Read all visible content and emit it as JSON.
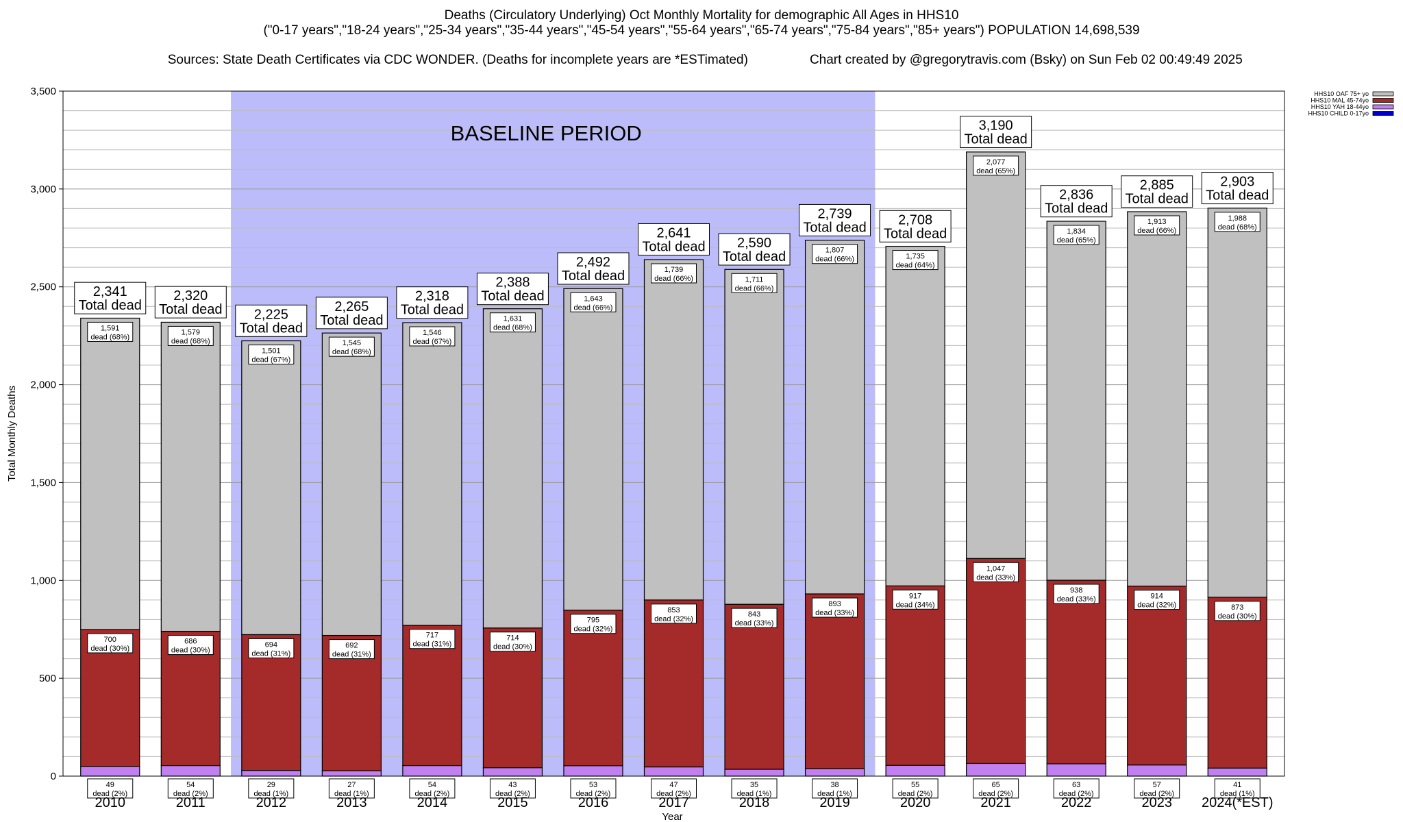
{
  "header": {
    "title": "Deaths (Circulatory Underlying) Oct Monthly Mortality for demographic All Ages in HHS10",
    "subtitle": "(\"0-17 years\",\"18-24 years\",\"25-34 years\",\"35-44 years\",\"45-54 years\",\"55-64 years\",\"65-74 years\",\"75-84 years\",\"85+ years\") POPULATION 14,698,539",
    "sources": "Sources: State Death Certificates via CDC WONDER. (Deaths for incomplete years are *ESTimated)",
    "credit": "Chart created by @gregorytravis.com (Bsky) on Sun Feb 02 00:49:49 2025"
  },
  "chart_data": {
    "type": "bar",
    "stacked": true,
    "xlabel": "Year",
    "ylabel": "Total Monthly Deaths",
    "ylim": [
      0,
      3500
    ],
    "yticks": [
      0,
      500,
      1000,
      1500,
      2000,
      2500,
      3000,
      3500
    ],
    "ytick_labels": [
      "0",
      "500",
      "1,000",
      "1,500",
      "2,000",
      "2,500",
      "3,000",
      "3,500"
    ],
    "grid": true,
    "legend_position": "top-right",
    "annotation": {
      "text": "BASELINE PERIOD",
      "from": "2012",
      "to": "2019",
      "color": "#bcbcfa"
    },
    "categories": [
      "2010",
      "2011",
      "2012",
      "2013",
      "2014",
      "2015",
      "2016",
      "2017",
      "2018",
      "2019",
      "2020",
      "2021",
      "2022",
      "2023",
      "2024(*EST)"
    ],
    "totals": [
      2341,
      2320,
      2225,
      2265,
      2318,
      2388,
      2492,
      2641,
      2590,
      2739,
      2708,
      3190,
      2836,
      2885,
      2903
    ],
    "totals_text": [
      "2,341",
      "2,320",
      "2,225",
      "2,265",
      "2,318",
      "2,388",
      "2,492",
      "2,641",
      "2,590",
      "2,739",
      "2,708",
      "3,190",
      "2,836",
      "2,885",
      "2,903"
    ],
    "total_caption": "Total dead",
    "series": [
      {
        "name": "HHS10 CHILD 0-17yo",
        "color": "#0000cc",
        "values": [
          0,
          0,
          0,
          0,
          0,
          0,
          0,
          0,
          0,
          0,
          0,
          0,
          0,
          0,
          0
        ],
        "labels": [
          "",
          "",
          "",
          "",
          "",
          "",
          "",
          "",
          "",
          "",
          "",
          "",
          "",
          "",
          ""
        ],
        "pct": [
          "",
          "",
          "",
          "",
          "",
          "",
          "",
          "",
          "",
          "",
          "",
          "",
          "",
          "",
          ""
        ]
      },
      {
        "name": "HHS10 YAH 18-44yo",
        "color": "#c080f0",
        "values": [
          49,
          54,
          29,
          27,
          54,
          43,
          53,
          47,
          35,
          38,
          55,
          65,
          63,
          57,
          41
        ],
        "labels": [
          "49",
          "54",
          "29",
          "27",
          "54",
          "43",
          "53",
          "47",
          "35",
          "38",
          "55",
          "65",
          "63",
          "57",
          "41"
        ],
        "pct": [
          "dead (2%)",
          "dead (2%)",
          "dead (1%)",
          "dead (1%)",
          "dead (2%)",
          "dead (2%)",
          "dead (2%)",
          "dead (2%)",
          "dead (1%)",
          "dead (1%)",
          "dead (2%)",
          "dead (2%)",
          "dead (2%)",
          "dead (2%)",
          "dead (1%)"
        ]
      },
      {
        "name": "HHS10 MAL 45-74yo",
        "color": "#a52a2a",
        "values": [
          700,
          686,
          694,
          692,
          717,
          714,
          795,
          853,
          843,
          893,
          917,
          1047,
          938,
          914,
          873
        ],
        "labels": [
          "700",
          "686",
          "694",
          "692",
          "717",
          "714",
          "795",
          "853",
          "843",
          "893",
          "917",
          "1,047",
          "938",
          "914",
          "873"
        ],
        "pct": [
          "dead (30%)",
          "dead (30%)",
          "dead (31%)",
          "dead (31%)",
          "dead (31%)",
          "dead (30%)",
          "dead (32%)",
          "dead (32%)",
          "dead (33%)",
          "dead (33%)",
          "dead (34%)",
          "dead (33%)",
          "dead (33%)",
          "dead (32%)",
          "dead (30%)"
        ]
      },
      {
        "name": "HHS10 OAF 75+ yo",
        "color": "#c0c0c0",
        "values": [
          1591,
          1579,
          1501,
          1545,
          1546,
          1631,
          1643,
          1739,
          1711,
          1807,
          1735,
          2077,
          1834,
          1913,
          1988
        ],
        "labels": [
          "1,591",
          "1,579",
          "1,501",
          "1,545",
          "1,546",
          "1,631",
          "1,643",
          "1,739",
          "1,711",
          "1,807",
          "1,735",
          "2,077",
          "1,834",
          "1,913",
          "1,988"
        ],
        "pct": [
          "dead (68%)",
          "dead (68%)",
          "dead (67%)",
          "dead (68%)",
          "dead (67%)",
          "dead (68%)",
          "dead (66%)",
          "dead (66%)",
          "dead (66%)",
          "dead (66%)",
          "dead (64%)",
          "dead (65%)",
          "dead (65%)",
          "dead (66%)",
          "dead (68%)"
        ]
      }
    ],
    "legend_order": [
      "HHS10 OAF 75+ yo",
      "HHS10 MAL 45-74yo",
      "HHS10 YAH 18-44yo",
      "HHS10 CHILD 0-17yo"
    ]
  }
}
